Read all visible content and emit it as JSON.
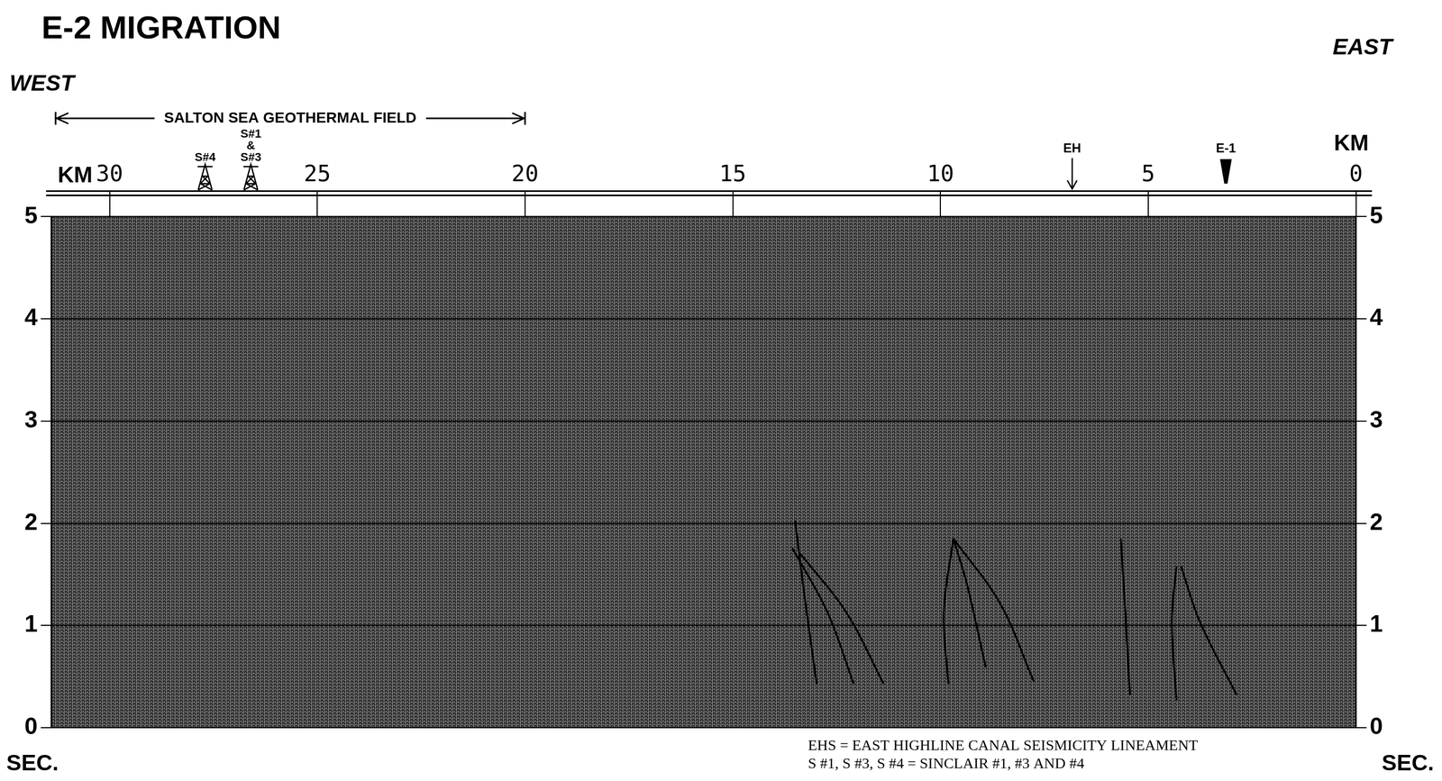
{
  "chart_data": {
    "type": "line",
    "title": "E-2 MIGRATION",
    "direction_left": "WEST",
    "direction_right": "EAST",
    "x_label": "KM",
    "y_label": "SEC.",
    "xlim": [
      31.4,
      0
    ],
    "xticks": [
      30,
      25,
      20,
      15,
      10,
      5,
      0
    ],
    "ylim": [
      5,
      0
    ],
    "yticks": [
      0,
      1,
      2,
      3,
      4,
      5
    ],
    "grid": "y",
    "color": "#000000",
    "series": [
      {
        "x": [
          12.98,
          13.28,
          13.5
        ],
        "values": [
          0.43,
          1.31,
          2.03
        ]
      },
      {
        "x": [
          12.09,
          12.72,
          13.57
        ],
        "values": [
          0.43,
          1.13,
          1.76
        ]
      },
      {
        "x": [
          11.37,
          12.27,
          13.39
        ],
        "values": [
          0.43,
          1.13,
          1.71
        ]
      },
      {
        "x": [
          9.81,
          9.92,
          9.69
        ],
        "values": [
          0.43,
          1.13,
          1.85
        ]
      },
      {
        "x": [
          8.91,
          9.36,
          9.69
        ],
        "values": [
          0.59,
          1.4,
          1.85
        ]
      },
      {
        "x": [
          7.75,
          8.57,
          9.69
        ],
        "values": [
          0.45,
          1.22,
          1.85
        ]
      },
      {
        "x": [
          5.44,
          5.55,
          5.66
        ],
        "values": [
          0.32,
          1.13,
          1.85
        ]
      },
      {
        "x": [
          4.32,
          4.43,
          4.32
        ],
        "values": [
          0.27,
          1.04,
          1.58
        ]
      },
      {
        "x": [
          2.87,
          3.76,
          4.21
        ],
        "values": [
          0.32,
          1.04,
          1.58
        ]
      }
    ],
    "annotations": {
      "field_span": {
        "text": "SALTON SEA GEOTHERMAL FIELD",
        "from_km": 31.3,
        "to_km": 20
      },
      "wells": [
        {
          "label_lines": [
            "S#4"
          ],
          "km": 27.7
        },
        {
          "label_lines": [
            "S#1",
            "&",
            "S#3"
          ],
          "km": 26.6
        }
      ],
      "markers": [
        {
          "label": "EH",
          "km": 6.83,
          "marker": "arrow"
        },
        {
          "label": "E-1",
          "km": 3.13,
          "marker": "triangle"
        }
      ],
      "notes": [
        "EHS = EAST HIGHLINE CANAL SEISMICITY LINEAMENT",
        "S #1, S #3, S #4 = SINCLAIR #1, #3 AND #4"
      ]
    }
  }
}
